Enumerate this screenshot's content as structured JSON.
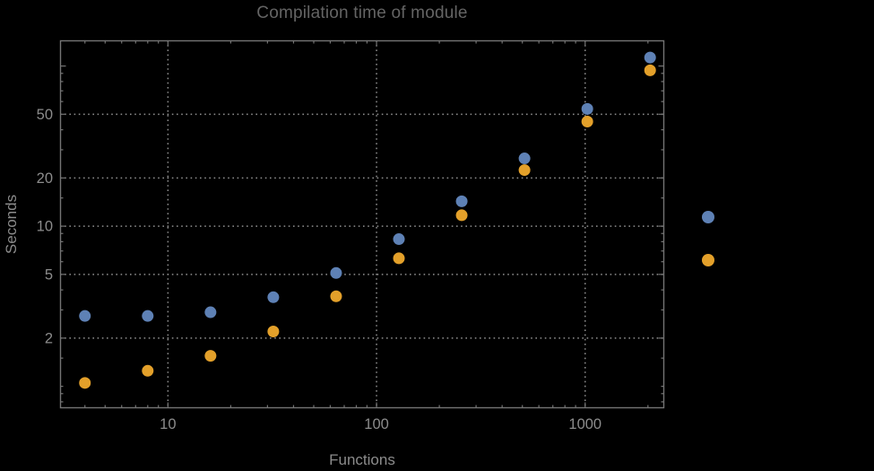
{
  "title": "Compilation time of module",
  "xlabel": "Functions",
  "ylabel": "Seconds",
  "colors": {
    "background": "#000000",
    "frame": "#747474",
    "grid": "#8e8e8e",
    "tick_label": "#8c8c8c",
    "title": "#646464",
    "series_blue": "#5E81B5",
    "series_orange": "#E3A02A"
  },
  "chart_data": {
    "type": "scatter",
    "title": "Compilation time of module",
    "xlabel": "Functions",
    "ylabel": "Seconds",
    "x_scale": "log",
    "y_scale": "log",
    "xlim": [
      3.04,
      2394
    ],
    "ylim": [
      0.73,
      144.6
    ],
    "grid": "dotted-at-major-ticks",
    "x": [
      4,
      8,
      16,
      32,
      64,
      128,
      256,
      512,
      1024,
      2048
    ],
    "series": [
      {
        "name": "series-1-blue",
        "color": "#5E81B5",
        "values": [
          2.75,
          2.75,
          2.9,
          3.6,
          5.1,
          8.3,
          14.3,
          26.5,
          54,
          113
        ]
      },
      {
        "name": "series-2-orange",
        "color": "#E3A02A",
        "values": [
          1.05,
          1.25,
          1.55,
          2.2,
          3.65,
          6.3,
          11.7,
          22.4,
          45,
          94
        ]
      }
    ],
    "x_ticks": {
      "major": [
        10,
        100,
        1000
      ],
      "major_labels": [
        "10",
        "100",
        "1000"
      ],
      "minor": [
        4,
        5,
        6,
        7,
        8,
        9,
        20,
        30,
        40,
        50,
        60,
        70,
        80,
        90,
        200,
        300,
        400,
        500,
        600,
        700,
        800,
        900,
        2000
      ]
    },
    "y_ticks": {
      "major": [
        2,
        5,
        10,
        20,
        50
      ],
      "major_labels": [
        "2",
        "5",
        "10",
        "20",
        "50"
      ],
      "medium_unlabeled": [
        100
      ],
      "minor": [
        0.8,
        0.9,
        1,
        1.5,
        3,
        4,
        6,
        7,
        8,
        9,
        15,
        30,
        40,
        60,
        70,
        80,
        90
      ]
    },
    "legend": {
      "position": "right-of-frame",
      "entries": [
        {
          "series": "series-1-blue",
          "color": "#5E81B5",
          "label": ""
        },
        {
          "series": "series-2-orange",
          "color": "#E3A02A",
          "label": ""
        }
      ]
    }
  }
}
